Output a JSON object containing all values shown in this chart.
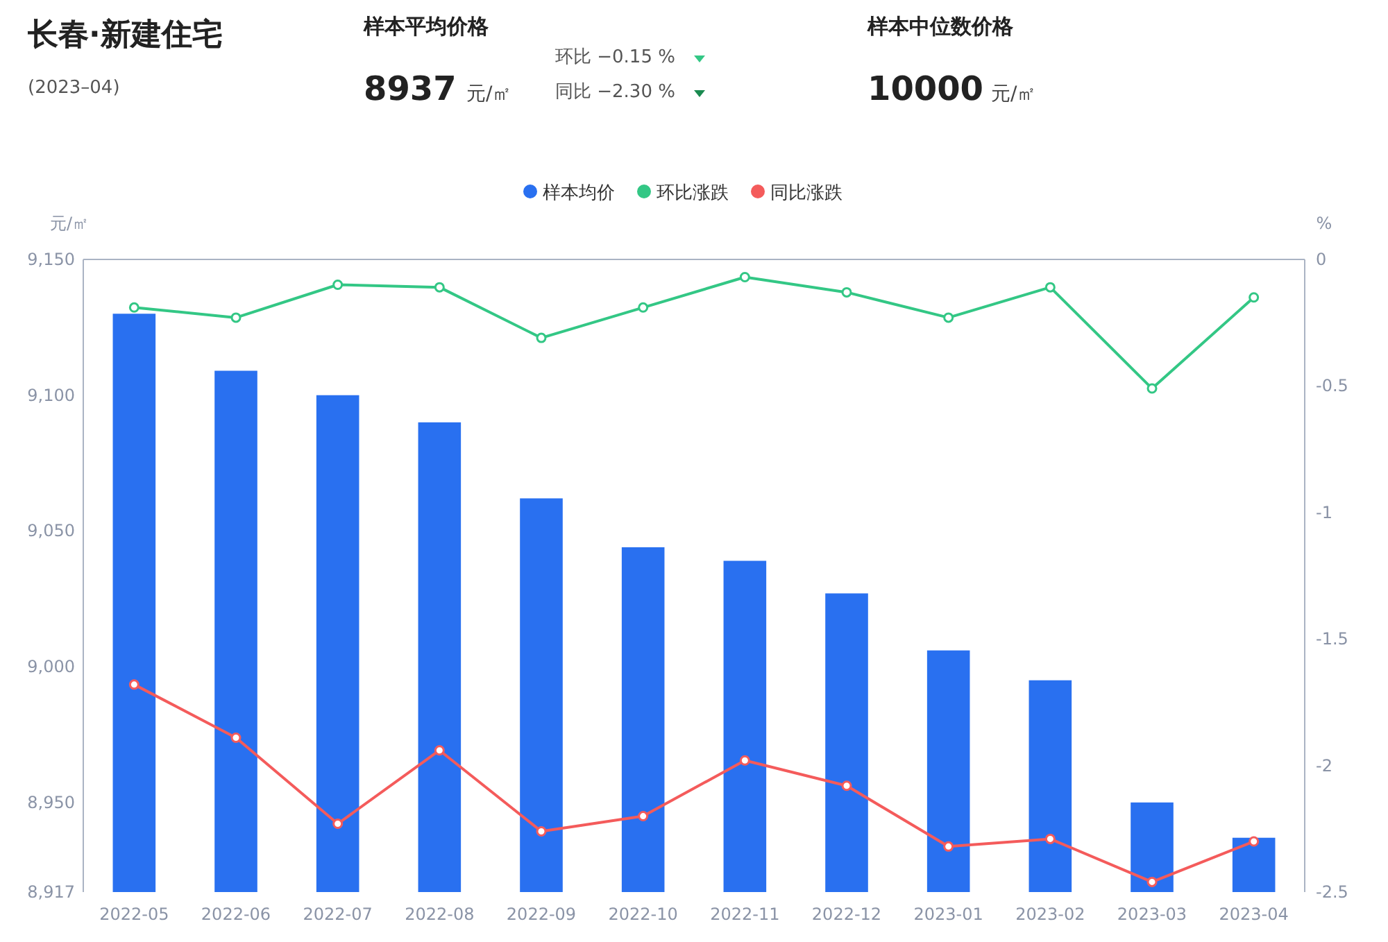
{
  "chart_data": {
    "type": "bar",
    "title": "长春·新建住宅",
    "subtitle": "(2023–04)",
    "annotations": [
      "样本平均价格",
      "8937",
      "元/㎡",
      "环比 −0.15 %",
      "同比 −2.30 %",
      "样本中位数价格",
      "10000",
      "元/㎡"
    ],
    "categories": [
      "2022-05",
      "2022-06",
      "2022-07",
      "2022-08",
      "2022-09",
      "2022-10",
      "2022-11",
      "2022-12",
      "2023-01",
      "2023-02",
      "2023-03",
      "2023-04"
    ],
    "ylabel": "元/㎡",
    "y2label": "%",
    "ylim": [
      8917,
      9150
    ],
    "yticks": [
      {
        "value": 9150,
        "label": "9,150"
      },
      {
        "value": 9100,
        "label": "9,100"
      },
      {
        "value": 9050,
        "label": "9,050"
      },
      {
        "value": 9000,
        "label": "9,000"
      },
      {
        "value": 8950,
        "label": "8,950"
      },
      {
        "value": 8917,
        "label": "8,917"
      }
    ],
    "y2lim": [
      -2.5,
      0
    ],
    "y2ticks": [
      0,
      -0.5,
      -1,
      -1.5,
      -2,
      -2.5
    ],
    "legend": "top",
    "grid": false,
    "series": [
      {
        "name": "样本均价",
        "color": "#2970f0",
        "values": [
          9130,
          9109,
          9100,
          9090,
          9062,
          9044,
          9039,
          9027,
          9006,
          8995,
          8950,
          8937
        ]
      },
      {
        "name": "环比涨跌",
        "type": "line",
        "axis": "y2",
        "color": "#33c785",
        "marker": "circle",
        "values": [
          -0.19,
          -0.23,
          -0.1,
          -0.11,
          -0.31,
          -0.19,
          -0.07,
          -0.13,
          -0.23,
          -0.11,
          -0.51,
          -0.15
        ]
      },
      {
        "name": "同比涨跌",
        "type": "line",
        "axis": "y2",
        "color": "#f45b5b",
        "marker": "circle",
        "values": [
          -1.68,
          -1.89,
          -2.23,
          -1.94,
          -2.26,
          -2.2,
          -1.98,
          -2.08,
          -2.32,
          -2.29,
          -2.46,
          -2.3
        ]
      }
    ]
  }
}
